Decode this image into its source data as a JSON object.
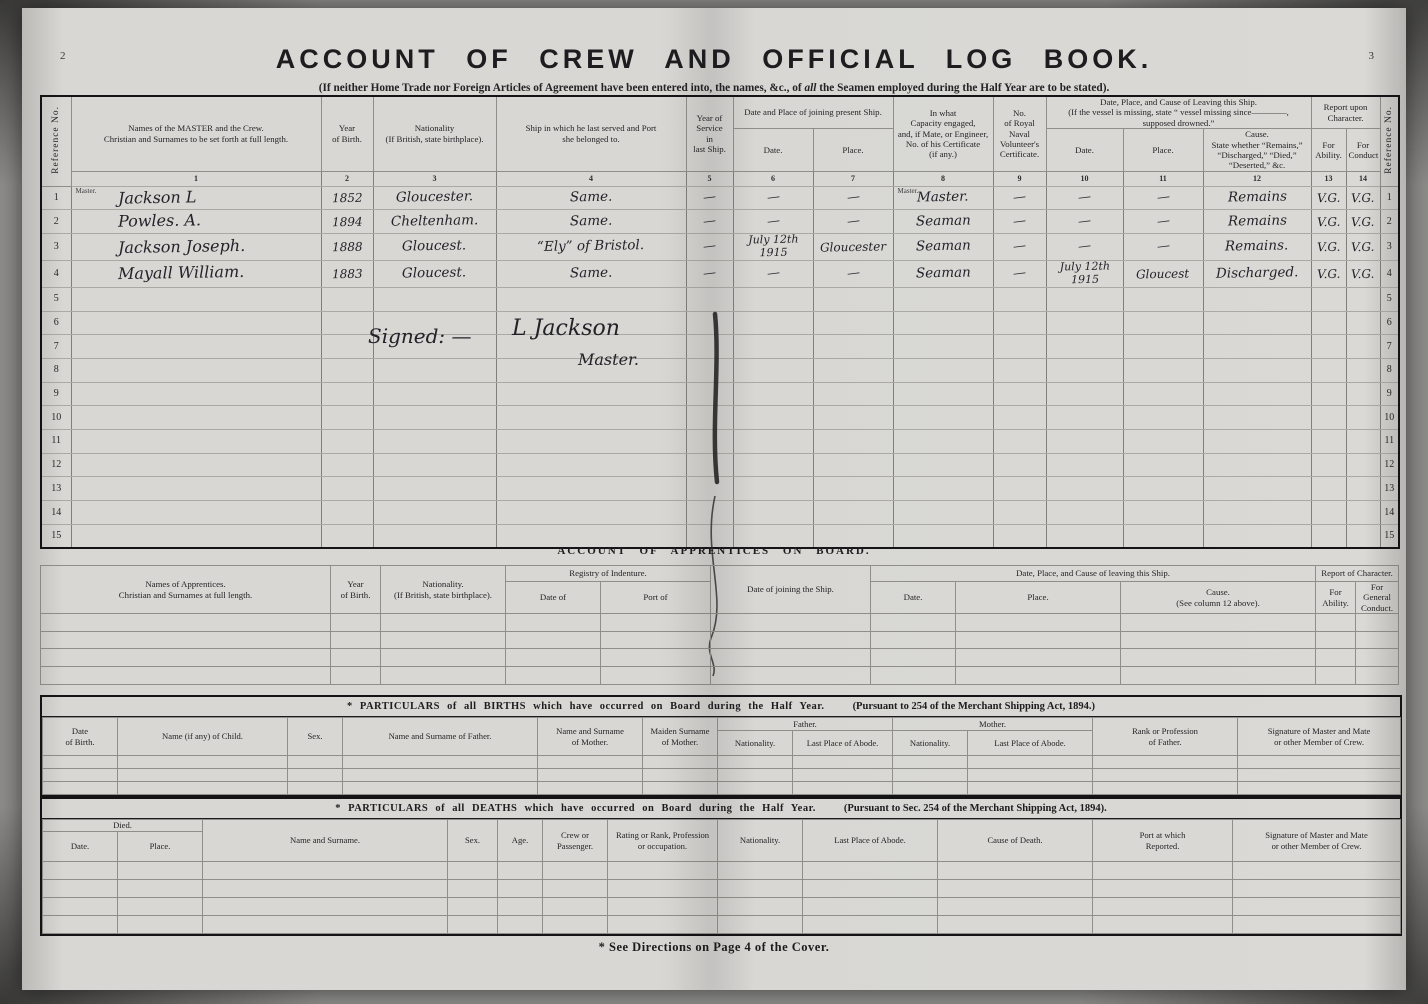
{
  "page": {
    "left_page_number": "2",
    "right_page_number": "3",
    "title": "ACCOUNT OF CREW AND OFFICIAL LOG BOOK.",
    "subtitle_pre": "(If neither Home Trade nor Foreign Articles of Agreement have been entered into, the names, &c., of ",
    "subtitle_em": "all",
    "subtitle_post": " the Seamen employed during the Half Year are to be stated).",
    "footnote": "* See Directions on Page 4 of the Cover.",
    "paper_color": "#d8d7d3",
    "printed_ink_color": "#1d1d1f",
    "handwriting_ink_color": "#23232b"
  },
  "crew_table": {
    "ref_no_label": "Reference No.",
    "headers": {
      "names": "Names of the MASTER and the Crew.\nChristian and Surnames to be set forth at full length.",
      "year_of_birth": "Year\nof Birth.",
      "nationality": "Nationality\n(If British, state birthplace).",
      "last_ship": "Ship in which he last served and Port\nshe belonged to.",
      "years_service": "Year of Service\nin\nlast Ship.",
      "joining_group": "Date and Place of joining present Ship.",
      "joining_date": "Date.",
      "joining_place": "Place.",
      "capacity": "In what\nCapacity engaged,\nand, if Mate, or Engineer,\nNo. of his Certificate\n(if any.)",
      "rnv_certificate": "No.\nof Royal\nNaval\nVolunteer's\nCertificate.",
      "leaving_group": "Date, Place, and Cause of Leaving this Ship.\n(If the vessel is missing, state “ vessel missing since————,\nsupposed drowned.”",
      "leaving_date": "Date.",
      "leaving_place": "Place.",
      "leaving_cause": "Cause.\nState whether “Remains,”\n“Discharged,” “Died,”\n“Deserted,” &c.",
      "report_group": "Report upon\nCharacter.",
      "ability": "For\nAbility.",
      "conduct": "For\nConduct",
      "col_numbers": [
        "1",
        "2",
        "3",
        "4",
        "5",
        "6",
        "7",
        "8",
        "9",
        "10",
        "11",
        "12",
        "13",
        "14"
      ]
    },
    "signature": {
      "prefix": "Signed: —",
      "name": "L Jackson",
      "role": "Master."
    },
    "rows": [
      {
        "ref": "1",
        "master_label": "Master.",
        "name": "Jackson L",
        "year": "1852",
        "nationality": "Gloucester.",
        "ship": "Same.",
        "service": "—",
        "join_date": "—",
        "join_place": "—",
        "capacity_label": "Master.",
        "capacity": "Master.",
        "rnv": "—",
        "leave_date": "—",
        "leave_place": "—",
        "cause": "Remains",
        "ability": "V.G.",
        "conduct": "V.G."
      },
      {
        "ref": "2",
        "name": "Powles. A.",
        "year": "1894",
        "nationality": "Cheltenham.",
        "ship": "Same.",
        "service": "—",
        "join_date": "—",
        "join_place": "—",
        "capacity": "Seaman",
        "rnv": "—",
        "leave_date": "—",
        "leave_place": "—",
        "cause": "Remains",
        "ability": "V.G.",
        "conduct": "V.G."
      },
      {
        "ref": "3",
        "name": "Jackson Joseph.",
        "year": "1888",
        "nationality": "Gloucest.",
        "ship": "“Ely” of Bristol.",
        "service": "—",
        "join_date": "July 12th 1915",
        "join_place": "Gloucester",
        "capacity": "Seaman",
        "rnv": "—",
        "leave_date": "—",
        "leave_place": "—",
        "cause": "Remains.",
        "ability": "V.G.",
        "conduct": "V.G."
      },
      {
        "ref": "4",
        "name": "Mayall William.",
        "year": "1883",
        "nationality": "Gloucest.",
        "ship": "Same.",
        "service": "—",
        "join_date": "—",
        "join_place": "—",
        "capacity": "Seaman",
        "rnv": "—",
        "leave_date": "July 12th 1915",
        "leave_place": "Gloucest",
        "cause": "Discharged.",
        "ability": "V.G.",
        "conduct": "V.G."
      },
      {
        "ref": "5"
      },
      {
        "ref": "6"
      },
      {
        "ref": "7"
      },
      {
        "ref": "8"
      },
      {
        "ref": "9"
      },
      {
        "ref": "10"
      },
      {
        "ref": "11"
      },
      {
        "ref": "12"
      },
      {
        "ref": "13"
      },
      {
        "ref": "14"
      },
      {
        "ref": "15"
      }
    ]
  },
  "apprentices": {
    "title": "ACCOUNT OF APPRENTICES ON BOARD.",
    "headers": {
      "names": "Names of Apprentices.\nChristian and Surnames at full length.",
      "year_of_birth": "Year\nof Birth.",
      "nationality": "Nationality.\n(If British, state birthplace).",
      "registry_group": "Registry of Indenture.",
      "registry_date": "Date of",
      "registry_port": "Port of",
      "joining_date": "Date of joining the Ship.",
      "leaving_group": "Date, Place, and Cause of leaving this Ship.",
      "leaving_date": "Date.",
      "leaving_place": "Place.",
      "leaving_cause": "Cause.\n(See column 12 above).",
      "report_group": "Report of Character.",
      "ability": "For\nAbility.",
      "conduct": "For General\nConduct."
    },
    "empty_row_count": 4
  },
  "births": {
    "title_main": "* PARTICULARS of all BIRTHS which have occurred on Board during the Half Year.",
    "title_suffix": "(Pursuant to 254 of the Merchant Shipping Act, 1894.)",
    "headers": {
      "date_of_birth": "Date\nof Birth.",
      "child_name": "Name (if any) of Child.",
      "sex": "Sex.",
      "father_name": "Name and Surname of Father.",
      "mother_name": "Name and Surname\nof Mother.",
      "maiden_surname": "Maiden Surname\nof Mother.",
      "father_group": "Father.",
      "mother_group": "Mother.",
      "nationality": "Nationality.",
      "abode": "Last Place of Abode.",
      "rank": "Rank or Profession\nof Father.",
      "signature": "Signature of Master and Mate\nor other Member of Crew."
    },
    "empty_row_count": 3
  },
  "deaths": {
    "title_main": "* PARTICULARS of all DEATHS which have occurred on Board during the Half Year.",
    "title_suffix": "(Pursuant to Sec. 254 of the Merchant Shipping Act, 1894).",
    "headers": {
      "died_group": "Died.",
      "date": "Date.",
      "place": "Place.",
      "name": "Name and Surname.",
      "sex": "Sex.",
      "age": "Age.",
      "crew_or_passenger": "Crew or\nPassenger.",
      "rating": "Rating or Rank, Profession\nor occupation.",
      "nationality": "Nationality.",
      "abode": "Last Place of Abode.",
      "cause_of_death": "Cause of Death.",
      "port_reported": "Port at which\nReported.",
      "signature": "Signature of Master and Mate\nor other Member of Crew."
    },
    "empty_row_count": 4
  }
}
